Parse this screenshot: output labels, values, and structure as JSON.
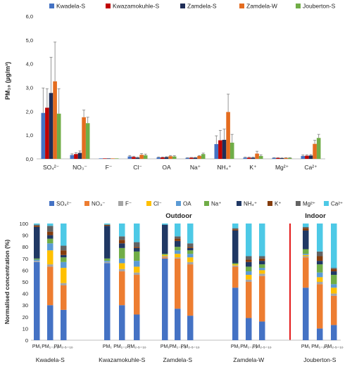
{
  "chart_data": [
    {
      "type": "bar",
      "ylabel": "PM₁₀ (µg/m³)",
      "ylim": [
        0,
        6
      ],
      "yticks": [
        "0,0",
        "1,0",
        "2,0",
        "3,0",
        "4,0",
        "5,0",
        "6,0"
      ],
      "legend_position": "top",
      "grid": false,
      "categories": [
        "SO₄²⁻",
        "NO₃⁻",
        "F⁻",
        "Cl⁻",
        "OA",
        "Na⁺",
        "NH₄⁺",
        "K⁺",
        "Mg²⁺",
        "Ca²⁺"
      ],
      "series": [
        {
          "name": "Kwadela-S",
          "color": "#4472c4",
          "values": [
            1.93,
            0.16,
            0.02,
            0.1,
            0.06,
            0.04,
            0.62,
            0.05,
            0.04,
            0.12
          ],
          "errors": [
            1.05,
            0.05,
            0,
            0.04,
            0.02,
            0.01,
            0.35,
            0.02,
            0.01,
            0.04
          ]
        },
        {
          "name": "Kwazamokuhle-S",
          "color": "#c00000",
          "values": [
            2.15,
            0.2,
            0.02,
            0.08,
            0.06,
            0.05,
            0.78,
            0.05,
            0.04,
            0.13
          ],
          "errors": [
            0.8,
            0.06,
            0,
            0.03,
            0.02,
            0.01,
            0.42,
            0.02,
            0.01,
            0.04
          ]
        },
        {
          "name": "Zamdela-S",
          "color": "#1f2d57",
          "values": [
            2.77,
            0.25,
            0.02,
            0.05,
            0.07,
            0.05,
            0.8,
            0.05,
            0.03,
            0.14
          ],
          "errors": [
            1.5,
            0.08,
            0,
            0.02,
            0.02,
            0.01,
            0.45,
            0.02,
            0.01,
            0.04
          ]
        },
        {
          "name": "Zamdela-W",
          "color": "#e46c1f",
          "values": [
            3.26,
            1.75,
            0.02,
            0.17,
            0.11,
            0.12,
            1.97,
            0.22,
            0.04,
            0.63
          ],
          "errors": [
            1.65,
            0.3,
            0,
            0.05,
            0.03,
            0.02,
            0.75,
            0.1,
            0.01,
            0.15
          ]
        },
        {
          "name": "Jouberton-S",
          "color": "#70ad47",
          "values": [
            1.9,
            1.5,
            0.02,
            0.15,
            0.1,
            0.2,
            0.68,
            0.12,
            0.04,
            0.88
          ],
          "errors": [
            1.05,
            0.25,
            0,
            0.05,
            0.03,
            0.04,
            0.35,
            0.05,
            0.01,
            0.15
          ]
        }
      ]
    },
    {
      "type": "bar",
      "stacked": true,
      "ylabel": "Normalised concentration (%)",
      "ylim": [
        0,
        100
      ],
      "yticks": [
        "0",
        "10",
        "20",
        "30",
        "40",
        "50",
        "60",
        "70",
        "80",
        "90",
        "100"
      ],
      "legend_position": "top",
      "annotations": [
        "Outdoor",
        "Indoor"
      ],
      "species": [
        {
          "name": "SO₄²⁻",
          "color": "#4472c4"
        },
        {
          "name": "NO₃⁻",
          "color": "#ed7d31"
        },
        {
          "name": "F⁻",
          "color": "#a5a5a5"
        },
        {
          "name": "Cl⁻",
          "color": "#ffc000"
        },
        {
          "name": "OA",
          "color": "#5b9bd5"
        },
        {
          "name": "Na⁺",
          "color": "#70ad47"
        },
        {
          "name": "NH₄⁺",
          "color": "#203864"
        },
        {
          "name": "K⁺",
          "color": "#843c0c"
        },
        {
          "name": "Mg²⁺",
          "color": "#636363"
        },
        {
          "name": "Ca²⁺",
          "color": "#4dc9e6"
        }
      ],
      "groups": [
        {
          "site": "Kwadela-S",
          "bars": [
            {
              "size": "PM₁",
              "values": [
                67,
                0,
                1,
                0,
                1,
                1,
                27,
                1,
                1,
                1
              ]
            },
            {
              "size": "PM₁₋₂.₅",
              "values": [
                30,
                33,
                2,
                12,
                6,
                4,
                3,
                3,
                5,
                2
              ]
            },
            {
              "size": "PM₂.₅₋₁₀",
              "values": [
                26,
                21,
                2,
                13,
                5,
                4,
                2,
                4,
                4,
                19
              ]
            }
          ]
        },
        {
          "site": "Kwazamokuhle-S",
          "bars": [
            {
              "size": "PM₁",
              "values": [
                66,
                0,
                1,
                0,
                1,
                2,
                28,
                1,
                0,
                1
              ]
            },
            {
              "size": "PM₁₋₂.₅",
              "values": [
                30,
                29,
                2,
                5,
                4,
                9,
                4,
                3,
                3,
                11
              ]
            },
            {
              "size": "PM₂.₅₋₁₀",
              "values": [
                22,
                34,
                2,
                5,
                5,
                8,
                3,
                1,
                4,
                16
              ]
            }
          ]
        },
        {
          "site": "Zamdela-S",
          "bars": [
            {
              "size": "PM₁",
              "values": [
                70,
                1,
                1,
                1,
                0,
                1,
                25,
                0,
                0,
                1
              ]
            },
            {
              "size": "PM₁₋₂.₅",
              "values": [
                27,
                43,
                1,
                3,
                3,
                3,
                5,
                2,
                2,
                11
              ]
            },
            {
              "size": "PM₂.₅₋₁₀",
              "values": [
                21,
                44,
                2,
                4,
                3,
                3,
                2,
                1,
                3,
                17
              ]
            }
          ]
        },
        {
          "site": "Zamdela-W",
          "bars": [
            {
              "size": "PM₁",
              "values": [
                45,
                18,
                1,
                1,
                0,
                1,
                28,
                1,
                1,
                4
              ]
            },
            {
              "size": "PM₁₋₂.₅",
              "values": [
                19,
                31,
                2,
                4,
                3,
                4,
                4,
                2,
                3,
                28
              ]
            },
            {
              "size": "PM₂.₅₋₁₀",
              "values": [
                16,
                39,
                2,
                3,
                2,
                3,
                3,
                2,
                2,
                28
              ]
            }
          ]
        },
        {
          "site": "Jouberton-S",
          "bars": [
            {
              "size": "PM₁",
              "values": [
                45,
                26,
                1,
                1,
                1,
                4,
                16,
                2,
                1,
                3
              ]
            },
            {
              "size": "PM₁₋₂.₅",
              "values": [
                10,
                38,
                2,
                4,
                4,
                7,
                3,
                4,
                4,
                24
              ]
            },
            {
              "size": "PM₂.₅₋₁₀",
              "values": [
                13,
                25,
                2,
                5,
                3,
                8,
                3,
                2,
                1,
                38
              ]
            }
          ]
        }
      ]
    }
  ]
}
